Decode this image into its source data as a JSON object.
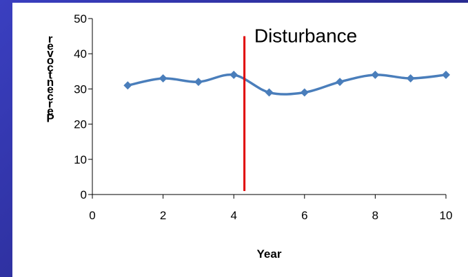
{
  "chart_data": {
    "type": "scatter",
    "mode": "lines+markers",
    "series": [
      {
        "x": [
          1,
          2,
          3,
          4,
          5,
          6,
          7,
          8,
          9,
          10
        ],
        "y": [
          31,
          33,
          32,
          34,
          29,
          29,
          32,
          34,
          33,
          34
        ],
        "color": "#4a7ebb",
        "marker": "diamond"
      }
    ],
    "xlim": [
      0,
      10
    ],
    "ylim": [
      0,
      50
    ],
    "xticks": [
      0,
      2,
      4,
      6,
      8,
      10
    ],
    "yticks": [
      0,
      10,
      20,
      30,
      40,
      50
    ],
    "xlabel": "Year",
    "ylabel": "Percent cover",
    "grid": false,
    "legend": false,
    "vertical_line": {
      "x": 4.3,
      "y_range": [
        1,
        45
      ],
      "color": "#e00000"
    },
    "annotation": {
      "text": "Disturbance",
      "x": 4.5,
      "y": 46
    }
  }
}
